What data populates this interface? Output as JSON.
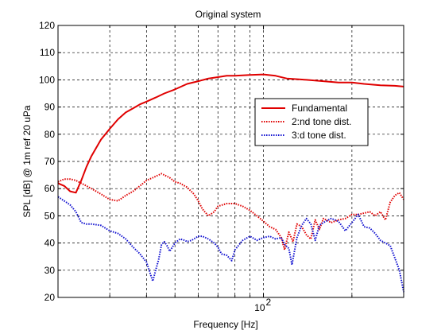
{
  "chart_data": {
    "type": "line",
    "title": "Original system",
    "xlabel": "Frequency [Hz]",
    "ylabel": "SPL [dB] @ 1m ref 20 uPa",
    "xscale": "log",
    "xlim": [
      20,
      300
    ],
    "ylim": [
      20,
      120
    ],
    "yticks": [
      20,
      30,
      40,
      50,
      60,
      70,
      80,
      90,
      100,
      110,
      120
    ],
    "yticklabels": [
      "20",
      "30",
      "40",
      "50",
      "60",
      "70",
      "80",
      "90",
      "100",
      "110",
      "120"
    ],
    "xticks_major": [
      100
    ],
    "xticklabel_base": "10",
    "xticklabel_exp": "2",
    "xgrid_minor": [
      30,
      40,
      50,
      60,
      70,
      80,
      90,
      200,
      300
    ],
    "grid": true,
    "legend_position": "right",
    "series": [
      {
        "name": "Fundamental",
        "color": "#e00000",
        "style": "solid",
        "x": [
          20,
          21,
          22,
          23,
          24,
          25,
          26,
          28,
          30,
          32,
          34,
          36,
          38,
          40,
          43,
          46,
          50,
          55,
          60,
          65,
          70,
          75,
          80,
          90,
          100,
          110,
          120,
          140,
          160,
          180,
          200,
          220,
          250,
          280,
          300
        ],
        "y": [
          62,
          61,
          59,
          58.5,
          63,
          68,
          72,
          78,
          82,
          85.5,
          88,
          89.5,
          91,
          92,
          93.5,
          95,
          96.5,
          98.5,
          99.5,
          100.5,
          101,
          101.5,
          101.5,
          101.8,
          102,
          101.5,
          100.5,
          100,
          99.5,
          99,
          99,
          98.5,
          98,
          97.8,
          97.5
        ]
      },
      {
        "name": "2:nd tone dist.",
        "color": "#e00000",
        "style": "dotted",
        "x": [
          20,
          21,
          22,
          23,
          24,
          25,
          26,
          28,
          30,
          32,
          34,
          36,
          38,
          40,
          42,
          45,
          48,
          50,
          52,
          55,
          58,
          60,
          62,
          65,
          68,
          70,
          75,
          80,
          85,
          90,
          95,
          100,
          105,
          110,
          115,
          118,
          122,
          126,
          130,
          135,
          140,
          145,
          150,
          155,
          160,
          170,
          180,
          190,
          200,
          210,
          220,
          230,
          240,
          250,
          260,
          270,
          280,
          290,
          300
        ],
        "y": [
          62.5,
          63.5,
          63.5,
          63,
          62,
          61,
          60,
          58,
          56,
          55.5,
          57.5,
          59,
          61,
          63,
          64,
          65.5,
          64,
          62.5,
          62,
          60.5,
          58,
          55.5,
          52.5,
          50,
          51.5,
          53.5,
          54.5,
          54.5,
          53.5,
          52,
          50,
          48,
          46,
          45,
          42,
          37.5,
          44,
          40.5,
          47,
          46,
          43,
          41.5,
          48.5,
          45,
          49,
          47.5,
          48.5,
          49,
          50.5,
          50.5,
          51,
          51.5,
          50,
          51.5,
          48.5,
          55,
          57.5,
          58.5,
          56
        ]
      },
      {
        "name": "3:d tone dist.",
        "color": "#1010d0",
        "style": "dotted",
        "x": [
          20,
          21,
          22,
          23,
          24,
          25,
          26,
          28,
          30,
          32,
          34,
          36,
          38,
          40,
          42,
          44,
          45,
          46,
          47,
          48,
          50,
          52,
          54,
          55,
          57,
          60,
          62,
          65,
          68,
          70,
          72,
          75,
          78,
          80,
          85,
          90,
          95,
          100,
          105,
          110,
          115,
          118,
          122,
          125,
          130,
          135,
          140,
          145,
          150,
          155,
          160,
          170,
          180,
          190,
          200,
          210,
          220,
          230,
          240,
          250,
          260,
          270,
          280,
          290,
          300
        ],
        "y": [
          57,
          55.5,
          54,
          51.5,
          47.5,
          47,
          47,
          46.5,
          44.5,
          43.5,
          41.5,
          38.5,
          36,
          33,
          26,
          34,
          39.5,
          40.5,
          39,
          37,
          40,
          41.5,
          41,
          40.5,
          41,
          42.5,
          42.5,
          41.5,
          40,
          38.5,
          36,
          35.5,
          33.5,
          37.5,
          41,
          42.5,
          41,
          42,
          42.5,
          41.5,
          42,
          39.5,
          38,
          32,
          42,
          46.5,
          49,
          47,
          41,
          46.5,
          47.5,
          49,
          48,
          44.5,
          47.5,
          50.5,
          46,
          45.5,
          43.5,
          41,
          40,
          39,
          34.5,
          30,
          22
        ]
      }
    ]
  }
}
